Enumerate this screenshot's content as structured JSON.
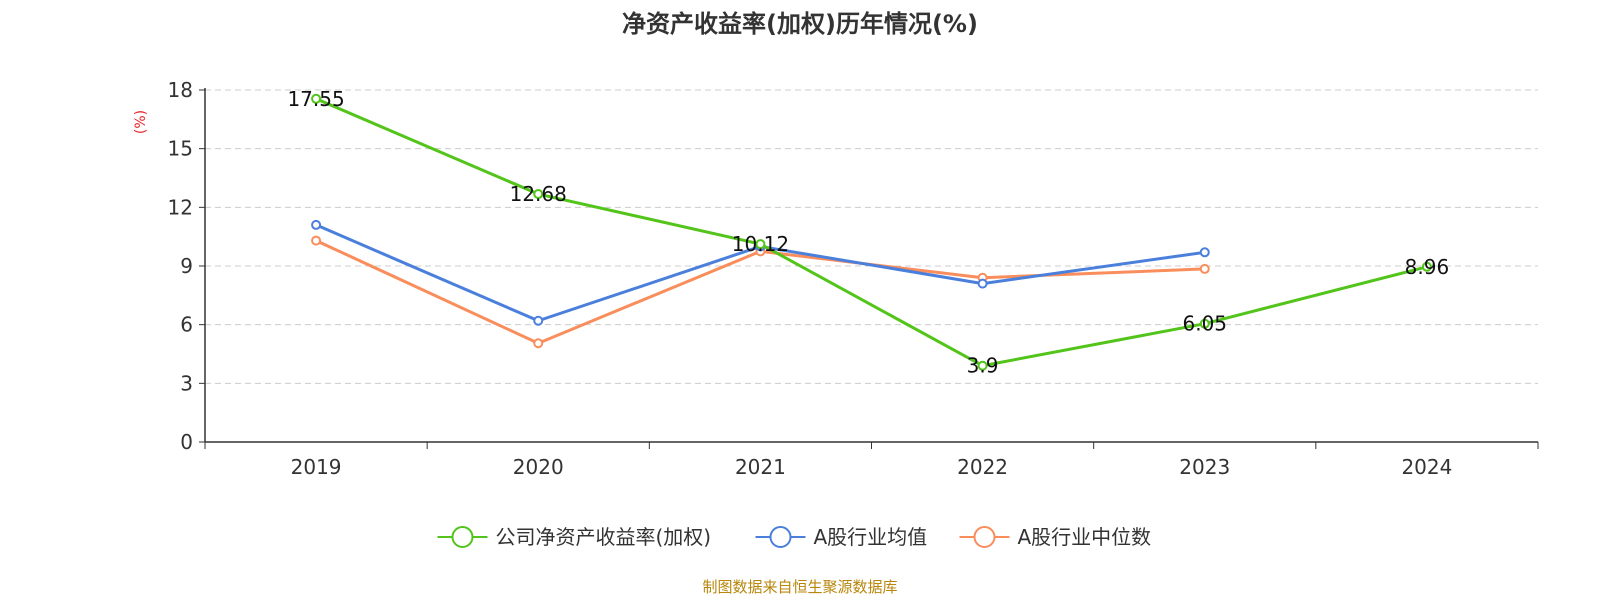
{
  "chart_data": {
    "type": "line",
    "title": "净资产收益率(加权)历年情况(%)",
    "ylabel": "(%)",
    "xlabel": "",
    "categories": [
      "2019",
      "2020",
      "2021",
      "2022",
      "2023",
      "2024"
    ],
    "ylim": [
      0,
      18
    ],
    "yticks": [
      0,
      3,
      6,
      9,
      12,
      15,
      18
    ],
    "grid": true,
    "legend_position": "bottom",
    "series": [
      {
        "name": "公司净资产收益率(加权)",
        "color": "#52c41a",
        "values": [
          17.55,
          12.68,
          10.12,
          3.9,
          6.05,
          8.96
        ],
        "labels": [
          "17.55",
          "12.68",
          "10.12",
          "3.9",
          "6.05",
          "8.96"
        ]
      },
      {
        "name": "A股行业均值",
        "color": "#4a7fdc",
        "values": [
          11.1,
          6.2,
          10.0,
          8.1,
          9.7,
          null
        ]
      },
      {
        "name": "A股行业中位数",
        "color": "#f98e5c",
        "values": [
          10.3,
          5.05,
          9.75,
          8.4,
          8.85,
          null
        ]
      }
    ],
    "source": "制图数据来自恒生聚源数据库"
  }
}
